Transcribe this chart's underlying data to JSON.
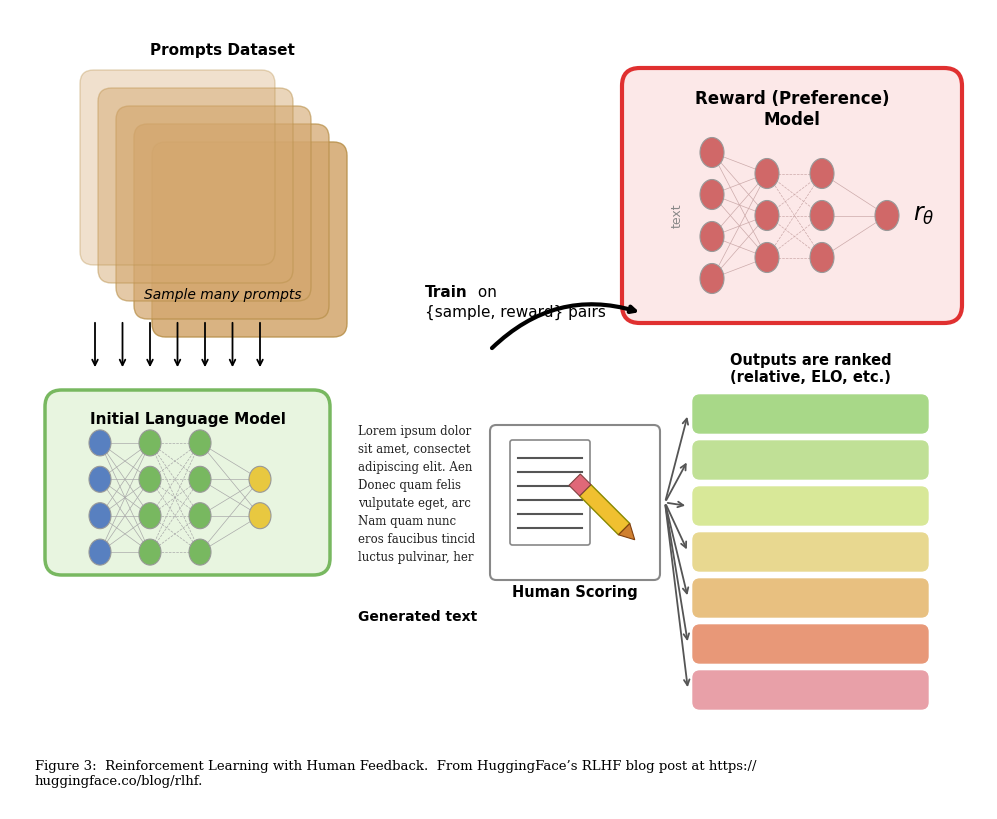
{
  "bg_color": "#ffffff",
  "title_caption": "Figure 3:  Reinforcement Learning with Human Feedback.  From HuggingFace’s RLHF blog post at https://\nhuggingface.co/blog/rlhf.",
  "prompts_dataset_label": "Prompts Dataset",
  "sample_many_prompts_label": "Sample many prompts",
  "initial_lm_label": "Initial Language Model",
  "train_label_bold": "Train",
  "train_label_normal": " on\n{sample, reward} pairs",
  "reward_model_label": "Reward (Preference)\nModel",
  "outputs_ranked_label": "Outputs are ranked\n(relative, ELO, etc.)",
  "human_scoring_label": "Human Scoring",
  "generated_text_label": "Generated text",
  "ranked_colors": [
    "#a8d888",
    "#c0e096",
    "#d8e898",
    "#e8d890",
    "#e8c080",
    "#e89878",
    "#e8a0a8"
  ],
  "reward_box_fill": "#fce8e8",
  "reward_box_edge": "#e03030",
  "ilm_box_fill": "#e8f5e0",
  "ilm_box_edge": "#78b860",
  "node_color_green": "#78b860",
  "node_color_blue": "#5880c0",
  "node_color_yellow": "#e8c840",
  "node_color_red": "#d06868",
  "stack_colors": [
    "#c8956040",
    "#c89560",
    "#c89560",
    "#c89560",
    "#c89560"
  ],
  "stack_alphas": [
    0.3,
    0.45,
    0.6,
    0.75,
    1.0
  ],
  "lorem_text": "Lorem ipsum dolor\nsit amet, consectet\nadipiscing elit. Aen\nDonec quam felis\nvulputate eget, arc\nNam quam nunc\neros faucibus tincid\nluctus pulvinar, her"
}
